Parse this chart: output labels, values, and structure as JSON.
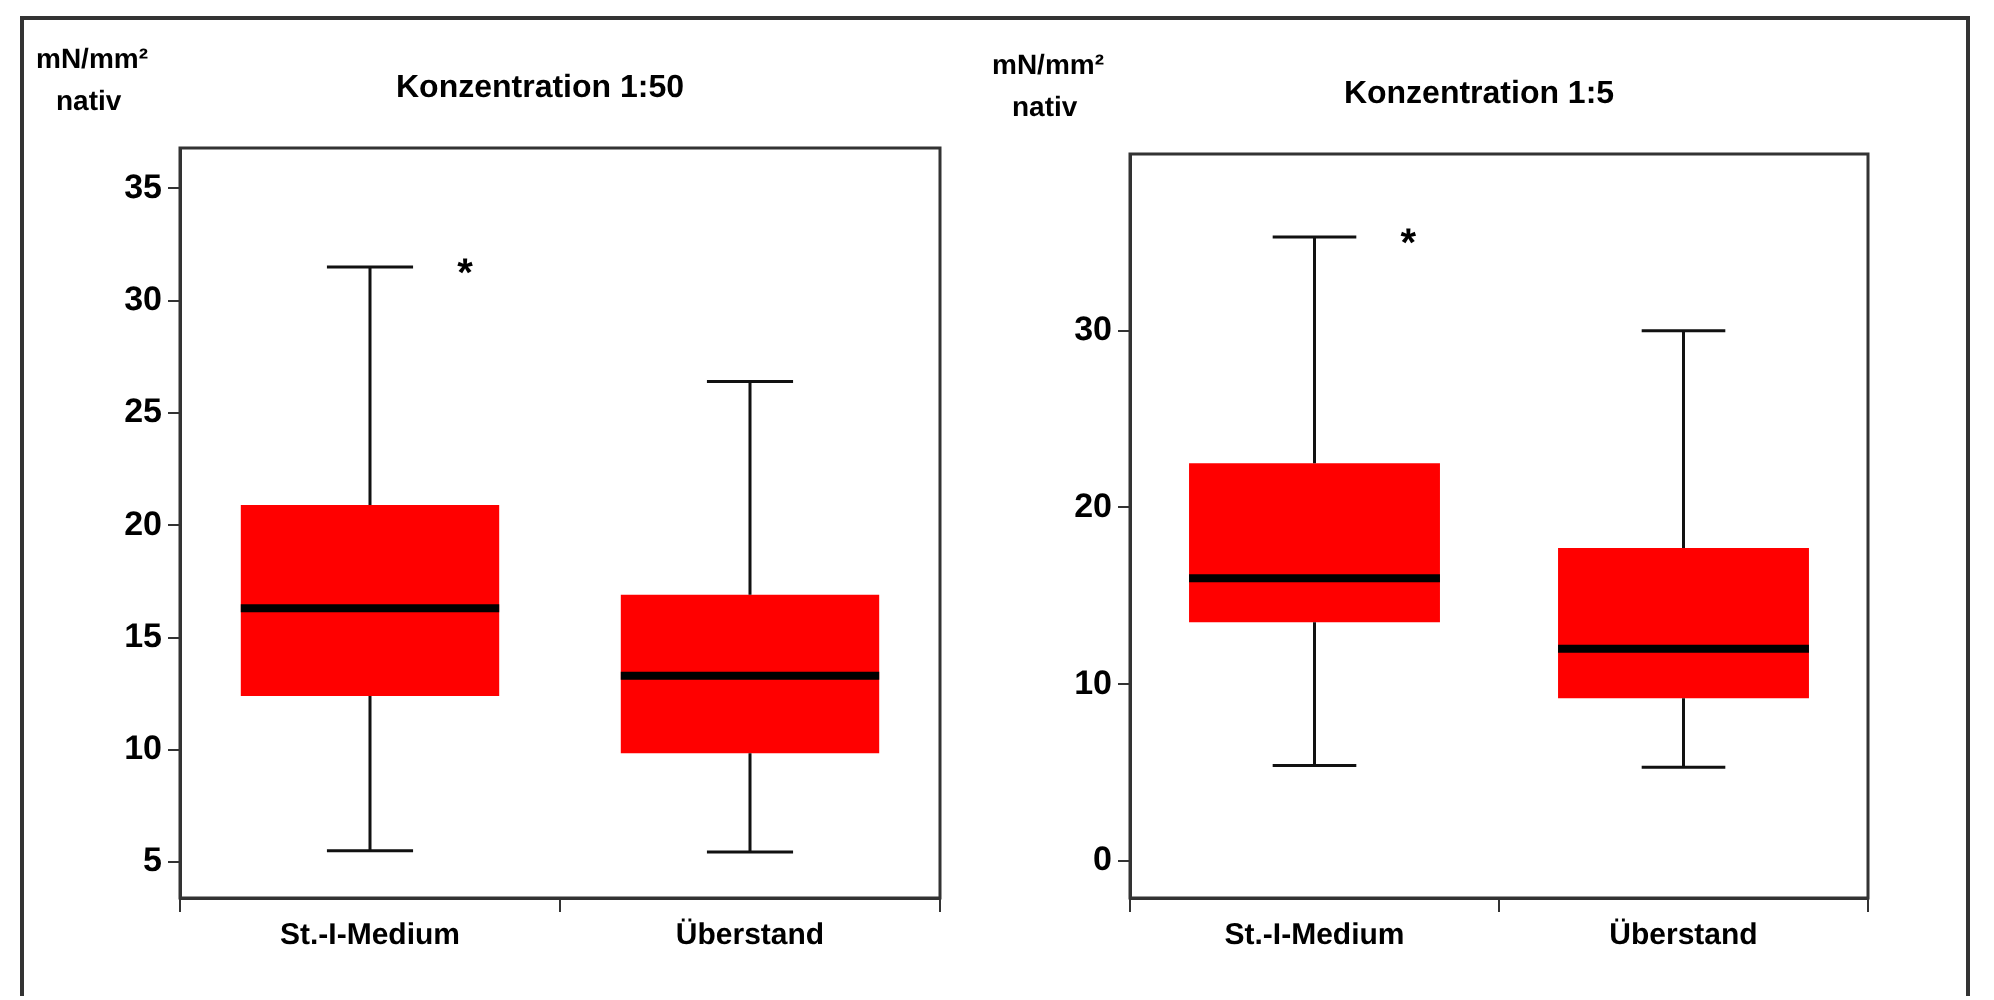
{
  "chart_data": [
    {
      "type": "box",
      "title": "Konzentration 1:50",
      "ylabel": "mN/mm² nativ",
      "categories": [
        "St.-I-Medium",
        "Überstand"
      ],
      "color": "#ff0000",
      "grid": false,
      "ylim": [
        3.4,
        36.8
      ],
      "yticks": [
        5,
        10,
        15,
        20,
        25,
        30,
        35
      ],
      "boxes": [
        {
          "low": 5.5,
          "q1": 12.4,
          "median": 16.3,
          "q3": 20.9,
          "high": 31.5
        },
        {
          "low": 5.45,
          "q1": 9.85,
          "median": 13.3,
          "q3": 16.9,
          "high": 26.4
        }
      ],
      "annotations": [
        {
          "text": "*",
          "x": "St.-I-Medium",
          "y": 31.5
        }
      ]
    },
    {
      "type": "box",
      "title": "Konzentration 1:5",
      "ylabel": "mN/mm² nativ",
      "categories": [
        "St.-I-Medium",
        "Überstand"
      ],
      "color": "#ff0000",
      "grid": false,
      "ylim": [
        -2.1,
        40
      ],
      "yticks": [
        0,
        10,
        20,
        30
      ],
      "boxes": [
        {
          "low": 5.4,
          "q1": 13.5,
          "median": 16,
          "q3": 22.5,
          "high": 35.3
        },
        {
          "low": 5.3,
          "q1": 9.2,
          "median": 12,
          "q3": 17.7,
          "high": 30
        }
      ],
      "annotations": [
        {
          "text": "*",
          "x": "St.-I-Medium",
          "y": 35.3
        }
      ]
    }
  ]
}
